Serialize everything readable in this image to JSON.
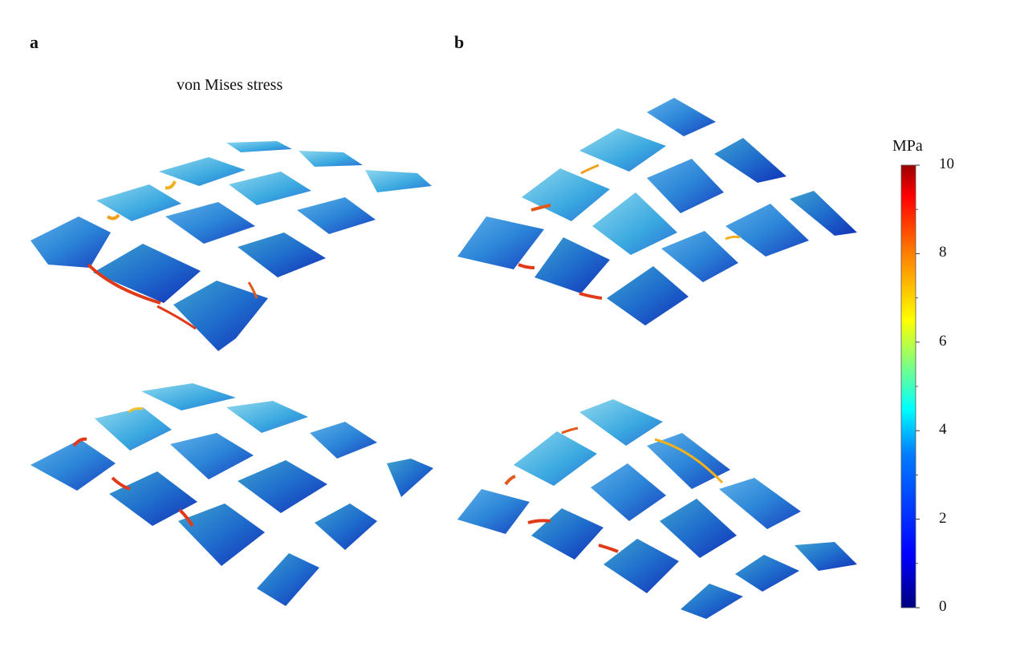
{
  "figure": {
    "panel_a_label": "a",
    "panel_b_label": "b",
    "title": "von Mises stress"
  },
  "colorbar": {
    "unit": "MPa",
    "min": 0,
    "max": 10,
    "ticks": [
      "10",
      "8",
      "6",
      "4",
      "2",
      "0"
    ],
    "colormap": "jet",
    "colors": [
      "#00007f",
      "#0000ff",
      "#007fff",
      "#00ffff",
      "#7fff7f",
      "#ffff00",
      "#ff7f00",
      "#ff0000",
      "#7f0000"
    ]
  },
  "colors": {
    "low": "#1f4fd0",
    "mid": "#3fb0d8",
    "high": "#e0301a",
    "pad": "#2a74d2"
  }
}
